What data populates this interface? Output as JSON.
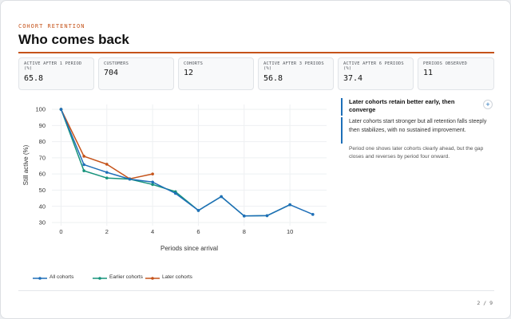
{
  "header": {
    "eyebrow": "COHORT RETENTION",
    "title": "Who comes back"
  },
  "kpis": [
    {
      "label": "ACTIVE AFTER 1 PERIOD (%)",
      "value": "65.8"
    },
    {
      "label": "CUSTOMERS",
      "value": "704"
    },
    {
      "label": "COHORTS",
      "value": "12"
    },
    {
      "label": "ACTIVE AFTER 3 PERIODS (%)",
      "value": "56.8"
    },
    {
      "label": "ACTIVE AFTER 6 PERIODS (%)",
      "value": "37.4"
    },
    {
      "label": "PERIODS OBSERVED",
      "value": "11"
    }
  ],
  "chart_data": {
    "type": "line",
    "xlabel": "Periods since arrival",
    "ylabel": "Still active (%)",
    "xlim": [
      -0.4,
      11.6
    ],
    "ylim": [
      28,
      103
    ],
    "x_ticks": [
      0,
      2,
      4,
      6,
      8,
      10
    ],
    "y_ticks": [
      30,
      40,
      50,
      60,
      70,
      80,
      90,
      100
    ],
    "grid": true,
    "legend_position": "bottom-left",
    "series": [
      {
        "name": "All cohorts",
        "color": "#1f6fb8",
        "x": [
          0,
          1,
          2,
          3,
          4,
          5,
          6,
          7,
          8,
          9,
          10,
          11
        ],
        "y": [
          100,
          65.8,
          61,
          56.8,
          55,
          48,
          37.4,
          46,
          34,
          34.2,
          41,
          35
        ]
      },
      {
        "name": "Earlier cohorts",
        "color": "#16937c",
        "x": [
          0,
          1,
          2,
          3,
          4,
          5,
          6,
          7,
          8,
          9,
          10
        ],
        "y": [
          100,
          62,
          57.5,
          56.8,
          53.5,
          49,
          37.4,
          46,
          34,
          34.2,
          41
        ]
      },
      {
        "name": "Later cohorts",
        "color": "#c5531a",
        "x": [
          0,
          1,
          2,
          3,
          4
        ],
        "y": [
          100,
          71,
          66,
          57,
          60
        ]
      }
    ]
  },
  "insight": {
    "headline": "Later cohorts retain better early, then converge",
    "body": "Later cohorts start stronger but all retention falls steeply then stabilizes, with no sustained improvement.",
    "note": "Period one shows later cohorts clearly ahead, but the gap closes and reverses by period four onward.",
    "expand_icon": "plus-icon",
    "expand_glyph": "+"
  },
  "footer": {
    "pager": "2 / 9"
  },
  "colors": {
    "accent": "#c5531a",
    "insight_bar": "#1d6fb8"
  }
}
